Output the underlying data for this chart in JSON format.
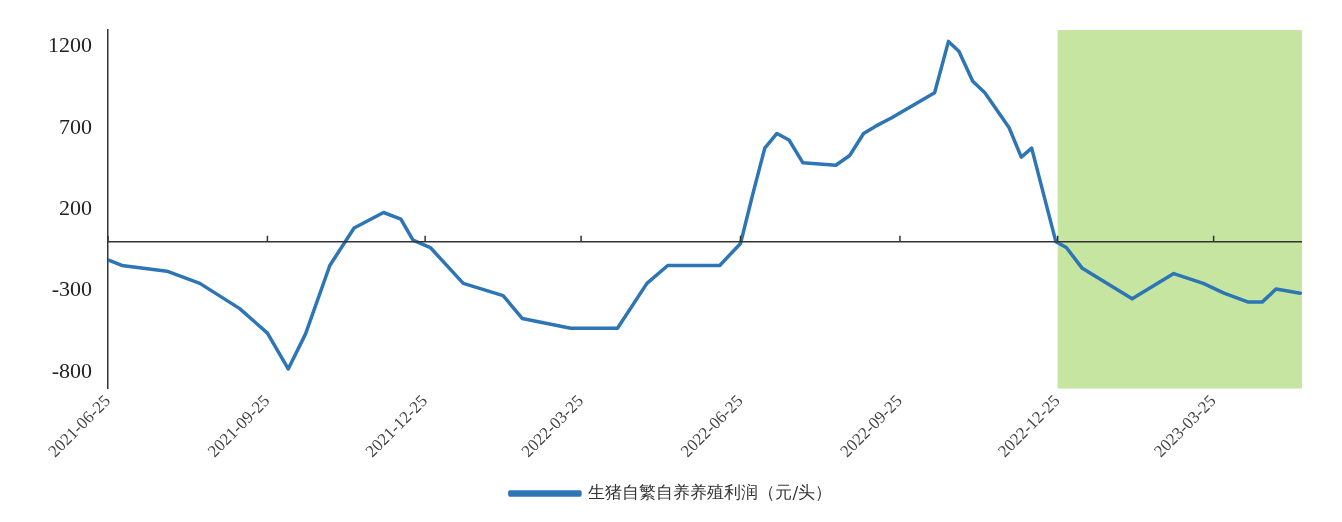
{
  "chart_data": {
    "type": "line",
    "series": [
      {
        "name": "生猪自繁自养养殖利润（元/头）",
        "color": "#2e75b6",
        "x": [
          "2021-06-25",
          "2021-07-03",
          "2021-07-29",
          "2021-08-17",
          "2021-09-09",
          "2021-09-25",
          "2021-10-07",
          "2021-10-17",
          "2021-10-31",
          "2021-11-14",
          "2021-12-01",
          "2021-12-11",
          "2021-12-18",
          "2021-12-28",
          "2022-01-16",
          "2022-02-08",
          "2022-02-19",
          "2022-03-19",
          "2022-04-15",
          "2022-05-02",
          "2022-05-14",
          "2022-06-13",
          "2022-06-25",
          "2022-07-02",
          "2022-07-09",
          "2022-07-16",
          "2022-07-23",
          "2022-07-31",
          "2022-08-19",
          "2022-08-27",
          "2022-09-04",
          "2022-09-11",
          "2022-09-20",
          "2022-10-15",
          "2022-10-23",
          "2022-10-29",
          "2022-11-06",
          "2022-11-13",
          "2022-11-27",
          "2022-12-04",
          "2022-12-10",
          "2022-12-24",
          "2022-12-30",
          "2023-01-08",
          "2023-02-06",
          "2023-03-02",
          "2023-03-19",
          "2023-03-31",
          "2023-04-14",
          "2023-04-22",
          "2023-04-30",
          "2023-05-14"
        ],
        "values": [
          -110,
          -145,
          -180,
          -255,
          -410,
          -560,
          -780,
          -565,
          -145,
          85,
          180,
          140,
          10,
          -35,
          -255,
          -330,
          -470,
          -530,
          -530,
          -255,
          -145,
          -145,
          -10,
          290,
          575,
          665,
          625,
          485,
          470,
          530,
          665,
          710,
          760,
          915,
          1230,
          1170,
          985,
          915,
          700,
          520,
          575,
          0,
          -35,
          -160,
          -350,
          -195,
          -255,
          -315,
          -370,
          -370,
          -290,
          -315
        ]
      }
    ],
    "xlim": [
      "2021-06-25",
      "2023-05-15"
    ],
    "xticks": [
      "2021-06-25",
      "2021-09-25",
      "2021-12-25",
      "2022-03-25",
      "2022-06-25",
      "2022-09-25",
      "2022-12-25",
      "2023-03-25"
    ],
    "ylim": [
      -900,
      1300
    ],
    "yticks": [
      1200,
      700,
      200,
      -300,
      -800
    ],
    "bands": [
      {
        "axis": "x",
        "from": "2022-12-25",
        "to": "2023-05-15",
        "color": "#c5e5a0"
      }
    ],
    "grid": false,
    "legend": "bottom",
    "marker": "none",
    "line_style": "solid"
  }
}
